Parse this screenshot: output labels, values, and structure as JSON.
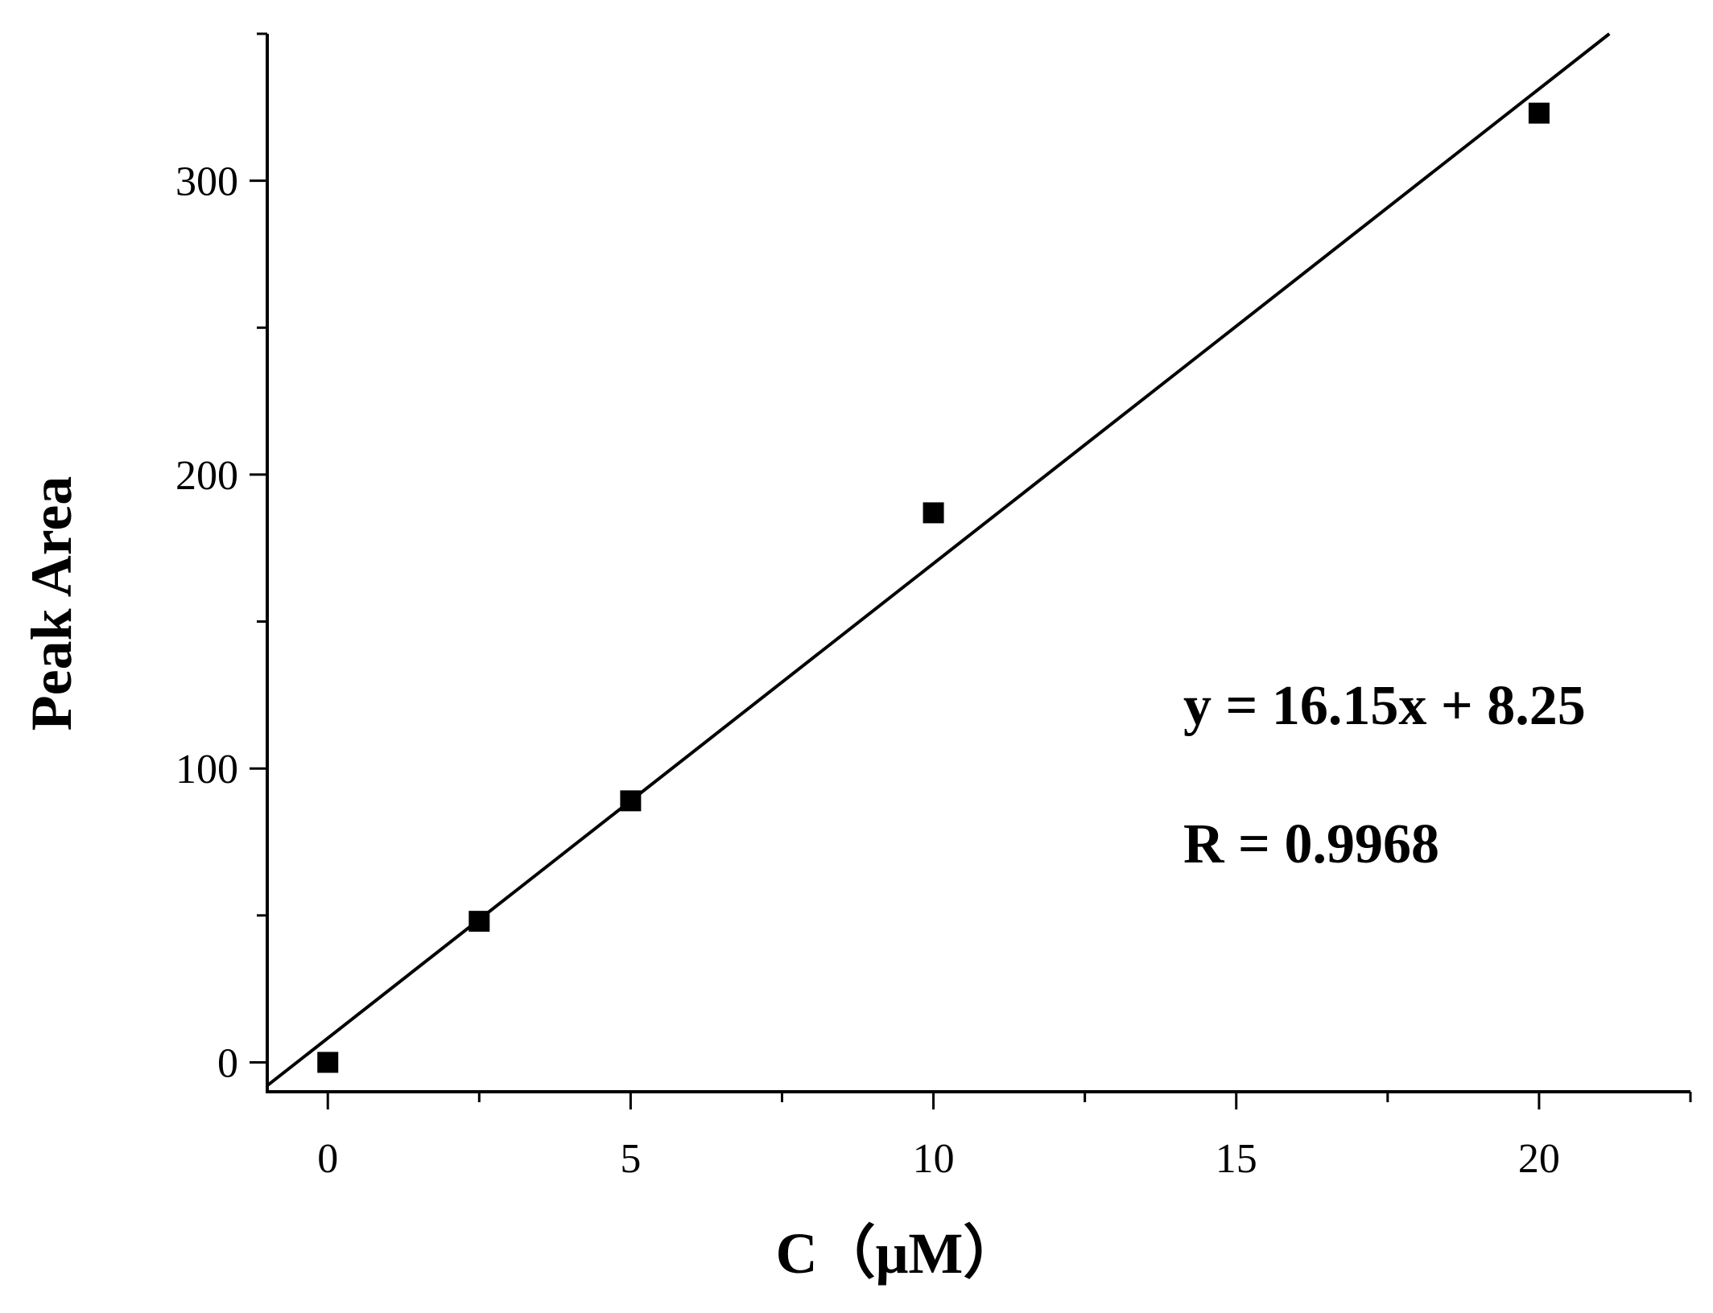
{
  "chart_data": {
    "type": "scatter",
    "xlabel": "C（μM）",
    "ylabel": "Peak Area",
    "xlim": [
      -1,
      22.5
    ],
    "ylim": [
      -10,
      350
    ],
    "xticks": [
      0,
      5,
      10,
      15,
      20
    ],
    "xtick_labels": [
      "0",
      "5",
      "10",
      "15",
      "20"
    ],
    "x_minor_ticks": [
      2.5,
      7.5,
      12.5,
      17.5,
      22.5
    ],
    "yticks": [
      0,
      100,
      200,
      300
    ],
    "ytick_labels": [
      "0",
      "100",
      "200",
      "300"
    ],
    "y_minor_ticks": [
      50,
      150,
      250,
      350
    ],
    "series": [
      {
        "x": [
          0,
          2.5,
          5,
          10,
          20
        ],
        "y": [
          0,
          48,
          89,
          187,
          323
        ],
        "marker": "square",
        "color": "#000000"
      }
    ],
    "fit_line": {
      "slope": 16.15,
      "intercept": 8.25,
      "color": "#000000"
    },
    "annotations": [
      "y = 16.15x + 8.25",
      "R = 0.9968"
    ],
    "grid": false,
    "legend": "none"
  }
}
